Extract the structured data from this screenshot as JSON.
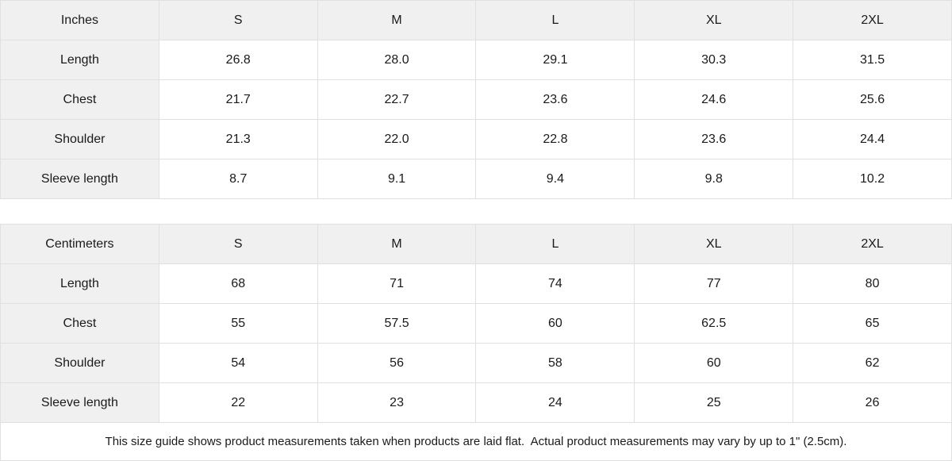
{
  "tables": [
    {
      "unit_label": "Inches",
      "sizes": [
        "S",
        "M",
        "L",
        "XL",
        "2XL"
      ],
      "rows": [
        {
          "label": "Length",
          "values": [
            "26.8",
            "28.0",
            "29.1",
            "30.3",
            "31.5"
          ]
        },
        {
          "label": "Chest",
          "values": [
            "21.7",
            "22.7",
            "23.6",
            "24.6",
            "25.6"
          ]
        },
        {
          "label": "Shoulder",
          "values": [
            "21.3",
            "22.0",
            "22.8",
            "23.6",
            "24.4"
          ]
        },
        {
          "label": "Sleeve length",
          "values": [
            "8.7",
            "9.1",
            "9.4",
            "9.8",
            "10.2"
          ]
        }
      ]
    },
    {
      "unit_label": "Centimeters",
      "sizes": [
        "S",
        "M",
        "L",
        "XL",
        "2XL"
      ],
      "rows": [
        {
          "label": "Length",
          "values": [
            "68",
            "71",
            "74",
            "77",
            "80"
          ]
        },
        {
          "label": "Chest",
          "values": [
            "55",
            "57.5",
            "60",
            "62.5",
            "65"
          ]
        },
        {
          "label": "Shoulder",
          "values": [
            "54",
            "56",
            "58",
            "60",
            "62"
          ]
        },
        {
          "label": "Sleeve length",
          "values": [
            "22",
            "23",
            "24",
            "25",
            "26"
          ]
        }
      ]
    }
  ],
  "footer": {
    "note": "This size guide shows product measurements taken when products are laid flat.  Actual product measurements may vary by up to 1\" (2.5cm)."
  },
  "colors": {
    "header_bg": "#f0f0f0",
    "border": "#e0e0e0",
    "text": "#1a1a1a"
  }
}
